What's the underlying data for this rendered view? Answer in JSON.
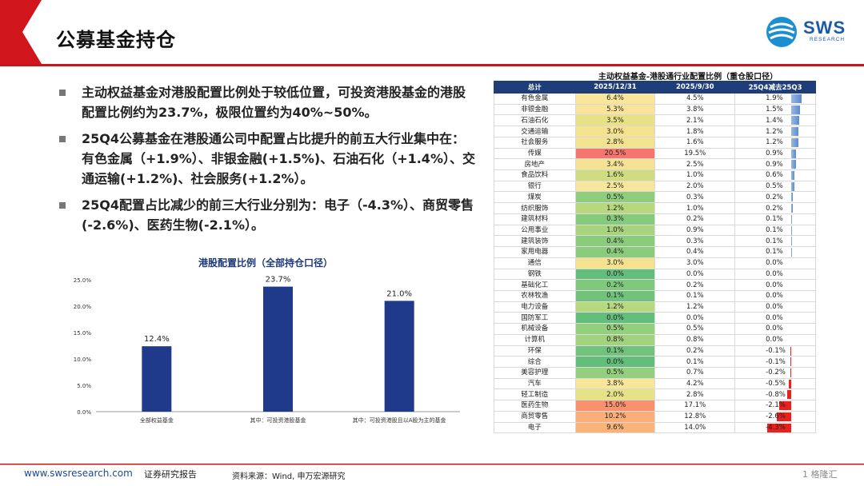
{
  "header": {
    "title": "公募基金持仓",
    "logo_text": "SWS",
    "logo_sub": "RESEARCH"
  },
  "bullets": [
    "主动权益基金对港股配置比例处于较低位置，可投资港股基金的港股配置比例约为23.7%，极限位置约为40%~50%。",
    "25Q4公募基金在港股通公司中配置占比提升的前五大行业集中在：有色金属（+1.9%）、非银金融(+1.5%)、石油石化（+1.4%）、交通运输(+1.2%)、社会服务(+1.2%）。",
    "25Q4配置占比减少的前三大行业分别为：电子（-4.3%）、商贸零售(-2.6%)、医药生物(-2.1%）。"
  ],
  "chart_data": {
    "type": "bar",
    "title": "港股配置比例（全部持仓口径）",
    "categories": [
      "全部权益基金",
      "其中：可投资港股基金",
      "其中：可投资港股且以A股为主的基金"
    ],
    "values": [
      12.4,
      23.7,
      21.0
    ],
    "value_labels": [
      "12.4%",
      "23.7%",
      "21.0%"
    ],
    "yticks": [
      "0.0%",
      "5.0%",
      "10.0%",
      "15.0%",
      "20.0%",
      "25.0%"
    ],
    "ylim": [
      0,
      25
    ],
    "grid": false,
    "bar_color": "#1f3a8a"
  },
  "table": {
    "title": "主动权益基金-港股通行业配置比例（重仓股口径）",
    "headers": [
      "总计",
      "2025/12/31",
      "2025/9/30",
      "25Q4减去25Q3"
    ],
    "rows": [
      [
        "有色金属",
        "6.4%",
        "4.5%",
        "1.9%"
      ],
      [
        "非银金融",
        "5.3%",
        "3.8%",
        "1.5%"
      ],
      [
        "石油石化",
        "3.5%",
        "2.1%",
        "1.4%"
      ],
      [
        "交通运输",
        "3.0%",
        "1.8%",
        "1.2%"
      ],
      [
        "社会服务",
        "2.8%",
        "1.6%",
        "1.2%"
      ],
      [
        "传媒",
        "20.5%",
        "19.5%",
        "0.9%"
      ],
      [
        "房地产",
        "3.4%",
        "2.5%",
        "0.9%"
      ],
      [
        "食品饮料",
        "1.6%",
        "1.0%",
        "0.6%"
      ],
      [
        "银行",
        "2.5%",
        "2.0%",
        "0.5%"
      ],
      [
        "煤炭",
        "0.5%",
        "0.3%",
        "0.2%"
      ],
      [
        "纺织服饰",
        "1.2%",
        "1.0%",
        "0.2%"
      ],
      [
        "建筑材料",
        "0.3%",
        "0.2%",
        "0.1%"
      ],
      [
        "公用事业",
        "1.0%",
        "0.9%",
        "0.1%"
      ],
      [
        "建筑装饰",
        "0.4%",
        "0.3%",
        "0.1%"
      ],
      [
        "家用电器",
        "0.4%",
        "0.4%",
        "0.1%"
      ],
      [
        "通信",
        "3.0%",
        "3.0%",
        "0.0%"
      ],
      [
        "钢铁",
        "0.0%",
        "0.0%",
        "0.0%"
      ],
      [
        "基础化工",
        "0.2%",
        "0.2%",
        "0.0%"
      ],
      [
        "农林牧渔",
        "0.1%",
        "0.1%",
        "0.0%"
      ],
      [
        "电力设备",
        "1.2%",
        "1.2%",
        "0.0%"
      ],
      [
        "国防军工",
        "0.0%",
        "0.0%",
        "0.0%"
      ],
      [
        "机械设备",
        "0.5%",
        "0.5%",
        "0.0%"
      ],
      [
        "计算机",
        "0.8%",
        "0.8%",
        "0.0%"
      ],
      [
        "环保",
        "0.1%",
        "0.2%",
        "-0.1%"
      ],
      [
        "综合",
        "0.0%",
        "0.1%",
        "-0.1%"
      ],
      [
        "美容护理",
        "0.5%",
        "0.7%",
        "-0.2%"
      ],
      [
        "汽车",
        "3.8%",
        "4.2%",
        "-0.5%"
      ],
      [
        "轻工制造",
        "2.0%",
        "2.8%",
        "-0.8%"
      ],
      [
        "医药生物",
        "15.0%",
        "17.1%",
        "-2.1%"
      ],
      [
        "商贸零售",
        "10.2%",
        "12.8%",
        "-2.6%"
      ],
      [
        "电子",
        "9.6%",
        "14.0%",
        "-4.3%"
      ]
    ],
    "v1_colors": [
      "#f8e79a",
      "#f9e49a",
      "#e9e186",
      "#f4e28e",
      "#f2e391",
      "#f4766f",
      "#f6e293",
      "#cfdd80",
      "#f8e79a",
      "#8fcd7c",
      "#b8d87f",
      "#86cb7c",
      "#a9d47e",
      "#8acc7c",
      "#8acc7c",
      "#f4e28e",
      "#63be7b",
      "#7fc97c",
      "#71c37c",
      "#b8d87f",
      "#63be7b",
      "#93cf7c",
      "#a2d27e",
      "#71c37c",
      "#63be7b",
      "#93cf7c",
      "#f8e79a",
      "#e5e386",
      "#f8926e",
      "#fbae77",
      "#fcb378"
    ],
    "pos_bar_color": "#5b8bd0",
    "neg_bar_color": "#e8211f"
  },
  "footer": {
    "website": "www.swsresearch.com",
    "report_type": "证券研究报告",
    "source": "资料来源：Wind, 申万宏源研究",
    "page": "1",
    "watermark": "格隆汇"
  }
}
